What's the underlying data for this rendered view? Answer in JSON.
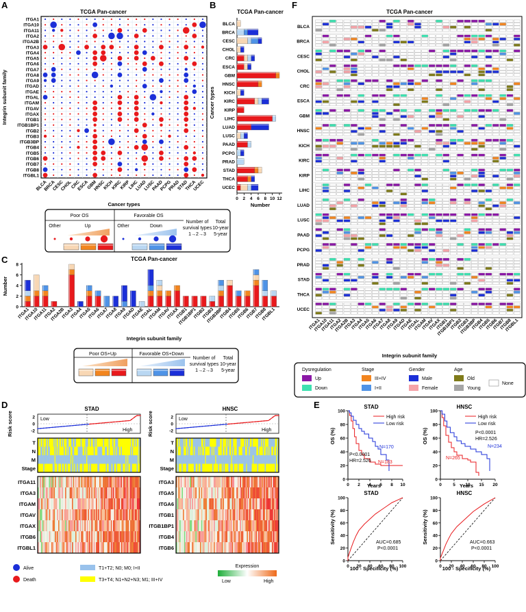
{
  "integrins": [
    "ITGA1",
    "ITGA10",
    "ITGA11",
    "ITGA2",
    "ITGA2B",
    "ITGA3",
    "ITGA4",
    "ITGA5",
    "ITGA6",
    "ITGA7",
    "ITGA8",
    "ITGA9",
    "ITGAD",
    "ITGAE",
    "ITGAL",
    "ITGAM",
    "ITGAV",
    "ITGAX",
    "ITGB1",
    "ITGB1BP1",
    "ITGB2",
    "ITGB3",
    "ITGB3BP",
    "ITGB4",
    "ITGB5",
    "ITGB6",
    "ITGB7",
    "ITGB8",
    "ITGBL1"
  ],
  "cancers": [
    "BLCA",
    "BRCA",
    "CESC",
    "CHOL",
    "CRC",
    "ESCA",
    "GBM",
    "HNSC",
    "KICH",
    "KIRC",
    "KIRP",
    "LIHC",
    "LUAD",
    "LUSC",
    "PAAD",
    "PCPG",
    "PRAD",
    "STAD",
    "THCA",
    "UCEC"
  ],
  "colors": {
    "red": "#e8191c",
    "blue": "#1b2fd8",
    "orange": "#f2851f",
    "peach": "#f8d7b4",
    "lightblue": "#b9d7f2",
    "midblue": "#4f93e6",
    "purple": "#8b18a6",
    "teal": "#3ee0b0",
    "olive": "#7f7b1a",
    "gray": "#a5a5a5",
    "pink": "#f5a3a8",
    "yellow": "#ffff00",
    "sky": "#99c2ec"
  },
  "panelA": {
    "letter": "A",
    "title": "TCGA Pan-cancer",
    "ylabel": "Integrin subunit family",
    "xlabel": "Cancer types",
    "legend": {
      "poor": "Poor OS",
      "favorable": "Favorable OS",
      "other1": "Other",
      "up": "Up",
      "other2": "Other",
      "down": "Down",
      "number": "Number of",
      "survival": "survival types",
      "scale": "1→2→3",
      "total": "Total",
      "tenyear": "10-year",
      "fiveyear": "5-year"
    }
  },
  "panelB": {
    "letter": "B",
    "title": "TCGA Pan-cancer",
    "ylabel": "Cancer types",
    "xlabel": "Number",
    "chart_data": {
      "type": "bar",
      "orientation": "horizontal-stacked",
      "categories": [
        "BLCA",
        "BRCA",
        "CESC",
        "CHOL",
        "CRC",
        "ESCA",
        "GBM",
        "HNSC",
        "KICH",
        "KIRC",
        "KIRP",
        "LIHC",
        "LUAD",
        "LUSC",
        "PAAD",
        "PCPG",
        "PRAD",
        "STAD",
        "THCA",
        "UCEC"
      ],
      "xlim": [
        0,
        12
      ],
      "xticks": [
        "0",
        "2",
        "4",
        "6",
        "8",
        "10",
        "12"
      ],
      "series": [
        {
          "name": "Poor OS 3",
          "values": [
            0,
            0,
            0,
            0,
            2,
            2,
            11,
            6,
            0,
            5,
            2,
            10,
            4,
            0,
            3,
            0,
            0,
            5,
            3,
            1
          ]
        },
        {
          "name": "Poor OS 2",
          "values": [
            0,
            0,
            0,
            0,
            0,
            0,
            1,
            1,
            0,
            0,
            0,
            0,
            0,
            0,
            0,
            0,
            0,
            1,
            1,
            0
          ]
        },
        {
          "name": "Poor OS 1",
          "values": [
            1,
            0,
            3,
            1,
            1,
            1,
            0,
            0,
            1,
            1,
            0,
            0,
            0,
            1,
            0,
            0,
            0,
            1,
            0,
            2
          ]
        },
        {
          "name": "Favorable 1",
          "values": [
            0,
            2,
            1,
            0,
            1,
            0,
            0,
            0,
            0,
            1,
            0,
            1,
            0,
            1,
            1,
            1,
            2,
            0,
            0,
            1
          ]
        },
        {
          "name": "Favorable 2",
          "values": [
            0,
            1,
            2,
            0,
            0,
            0,
            0,
            0,
            0,
            0,
            0,
            0,
            0,
            0,
            0,
            0,
            0,
            0,
            0,
            0
          ]
        },
        {
          "name": "Favorable 3",
          "values": [
            0,
            3,
            1,
            1,
            1,
            1,
            0,
            0,
            1,
            2,
            0,
            0,
            5,
            1,
            0,
            1,
            0,
            0,
            1,
            2
          ]
        }
      ]
    }
  },
  "panelC": {
    "letter": "C",
    "title": "TCGA Pan-cancer",
    "ylabel": "Number",
    "xlabel": "Integrin subunit family",
    "legend": {
      "poor": "Poor OS+Up",
      "favorable": "Favorable OS+Down",
      "number": "Number of",
      "survival": "survival types",
      "scale": "1→2→3",
      "total": "Total",
      "tenyear": "10-year",
      "fiveyear": "5-year"
    },
    "chart_data": {
      "type": "bar",
      "orientation": "vertical-stacked",
      "categories": [
        "ITGA1",
        "ITGA10",
        "ITGA11",
        "ITGA2",
        "ITGA2B",
        "ITGA3",
        "ITGA4",
        "ITGA5",
        "ITGA6",
        "ITGA7",
        "ITGA8",
        "ITGA9",
        "ITGAD",
        "ITGAE",
        "ITGAL",
        "ITGAM",
        "ITGAV",
        "ITGAX",
        "ITGB1",
        "ITGB1BP1",
        "ITGB2",
        "ITGB3",
        "ITGB3BP",
        "ITGB4",
        "ITGB5",
        "ITGB6",
        "ITGB7",
        "ITGB8",
        "ITGBL1"
      ],
      "ylim": [
        0,
        8
      ],
      "yticks": [
        "0",
        "2",
        "4",
        "6",
        "8"
      ],
      "series": [
        {
          "name": "Poor 3",
          "values": [
            1,
            2,
            2,
            1,
            0,
            6,
            0,
            2,
            2,
            0,
            0,
            0,
            0,
            0,
            2,
            2,
            2,
            3,
            2,
            2,
            2,
            1,
            2,
            4,
            2,
            2,
            4,
            2,
            2
          ]
        },
        {
          "name": "Poor 2",
          "values": [
            1,
            1,
            1,
            0,
            0,
            1,
            0,
            1,
            0,
            0,
            0,
            0,
            0,
            0,
            1,
            1,
            1,
            1,
            0,
            0,
            0,
            0,
            1,
            0,
            0,
            1,
            1,
            0,
            0
          ]
        },
        {
          "name": "Poor 1",
          "values": [
            0,
            3,
            0,
            0,
            0,
            1,
            0,
            0,
            0,
            0,
            0,
            0,
            0,
            0,
            0,
            1,
            0,
            0,
            0,
            0,
            0,
            0,
            0,
            1,
            0,
            0,
            1,
            0,
            0
          ]
        },
        {
          "name": "Fav 1",
          "values": [
            1,
            0,
            0,
            0,
            0,
            0,
            0,
            0,
            0,
            0,
            0,
            0,
            0,
            1,
            0,
            1,
            0,
            0,
            0,
            0,
            0,
            1,
            1,
            0,
            0,
            0,
            0,
            1,
            1
          ]
        },
        {
          "name": "Fav 2",
          "values": [
            0,
            0,
            1,
            0,
            0,
            0,
            0,
            1,
            1,
            2,
            0,
            1,
            0,
            0,
            1,
            0,
            0,
            0,
            0,
            0,
            0,
            0,
            1,
            0,
            1,
            0,
            1,
            2,
            0
          ]
        },
        {
          "name": "Fav 3",
          "values": [
            2,
            0,
            0,
            0,
            0,
            0,
            1,
            0,
            0,
            0,
            2,
            3,
            3,
            0,
            3,
            0,
            0,
            0,
            0,
            0,
            0,
            0,
            0,
            0,
            0,
            0,
            0,
            0,
            0
          ]
        }
      ]
    }
  },
  "panelD": {
    "letter": "D",
    "left": {
      "title": "STAD",
      "genes": [
        "ITGA11",
        "ITGA3",
        "ITGAM",
        "ITGAV",
        "ITGAX",
        "ITGB6",
        "ITGBL1"
      ]
    },
    "right": {
      "title": "HNSC",
      "genes": [
        "ITGA3",
        "ITGA5",
        "ITGA6",
        "ITGB1",
        "ITGB1BP1",
        "ITGB4",
        "ITGB6"
      ]
    },
    "risk_label": "Risk score",
    "risk_ticks": [
      "2",
      "0",
      "-2"
    ],
    "low": "Low",
    "high": "High",
    "clin_rows": [
      "T",
      "N",
      "M",
      "Stage"
    ],
    "legend": {
      "alive": "Alive",
      "death": "Death",
      "early": "T1+T2; N0; M0; I+II",
      "late": "T3+T4; N1+N2+N3; M1; III+IV",
      "expression": "Expression",
      "low": "Low",
      "high": "High"
    }
  },
  "panelE": {
    "letter": "E",
    "stad_km": {
      "title": "STAD",
      "high": "High risk",
      "low": "Low risk",
      "n_low": "N=170",
      "n_high": "N=183",
      "p": "P<0.0001",
      "hr": "HR=2.526",
      "xticks": [
        "0",
        "2",
        "4",
        "6",
        "8",
        "10"
      ]
    },
    "hnsc_km": {
      "title": "HNSC",
      "high": "High risk",
      "low": "Low risk",
      "n_low": "N=234",
      "n_high": "N=265",
      "p": "P<0.0001",
      "hr": "HR=2.526",
      "xticks": [
        "0",
        "5",
        "10",
        "15",
        "20"
      ]
    },
    "stad_roc": {
      "title": "STAD",
      "auc": "AUC=0.685",
      "p": "P<0.0001"
    },
    "hnsc_roc": {
      "title": "HNSC",
      "auc": "AUC=0.663",
      "p": "P<0.0001"
    },
    "os_label": "OS (%)",
    "years": "Years",
    "sens": "Sensitivity (%)",
    "spec": "100 - Specificity (%)",
    "pct_ticks": [
      "0",
      "20",
      "40",
      "60",
      "80",
      "100"
    ]
  },
  "panelF": {
    "letter": "F",
    "title": "TCGA Pan-cancer",
    "xlabel": "Integrin subunit family",
    "legend": {
      "dys": "Dysregulation",
      "up": "Up",
      "down": "Down",
      "stage": "Stage",
      "s34": "III+IV",
      "s12": "I+II",
      "gender": "Gender",
      "male": "Male",
      "female": "Female",
      "age": "Age",
      "old": "Old",
      "young": "Young",
      "none": "None"
    }
  }
}
